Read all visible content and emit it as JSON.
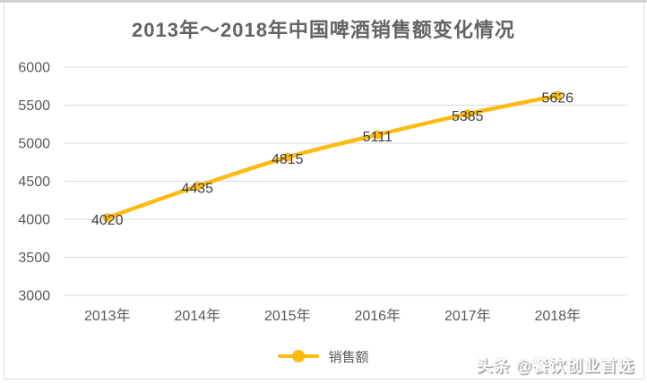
{
  "title": "2013年～2018年中国啤酒销售额变化情况",
  "chart_data": {
    "type": "line",
    "title": "2013年～2018年中国啤酒销售额变化情况",
    "categories": [
      "2013年",
      "2014年",
      "2015年",
      "2016年",
      "2017年",
      "2018年"
    ],
    "series": [
      {
        "name": "销售额",
        "values": [
          4020,
          4435,
          4815,
          5111,
          5385,
          5626
        ]
      }
    ],
    "yticks": [
      3000,
      3500,
      4000,
      4500,
      5000,
      5500,
      6000
    ],
    "ylim": [
      3000,
      6000
    ],
    "xlabel": "",
    "ylabel": "",
    "grid": "horizontal",
    "data_labels": true,
    "legend_position": "bottom",
    "colors": {
      "line": "#FDBA12",
      "grid": "#d9d9d9",
      "axis_text": "#595959",
      "data_label_text": "#3f3f3f",
      "title_text": "#636363"
    }
  },
  "legend": {
    "series_label": "销售额"
  },
  "watermark": {
    "text": "头条 @餐饮创业首选"
  }
}
